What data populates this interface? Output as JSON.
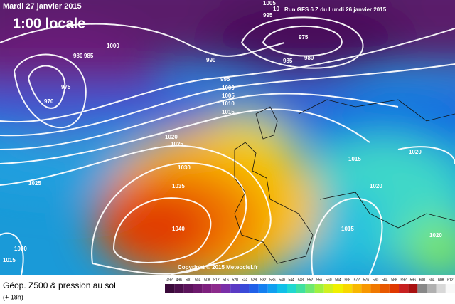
{
  "header": {
    "date": "Mardi 27 janvier 2015",
    "local_time": "1:00 locale",
    "run": "Run GFS 6 Z du Lundi 26 janvier 2015"
  },
  "copyright": "Copyright © 2015 Meteociel.fr",
  "footer": {
    "title": "Géop. Z500 & pression au sol",
    "lead": "(+ 18h)"
  },
  "isobar_labels": [
    1005,
    995,
    10,
    975,
    980,
    985,
    1000,
    985,
    980,
    975,
    970,
    990,
    995,
    1000,
    1005,
    1010,
    1015,
    1020,
    1025,
    1030,
    1035,
    1040,
    1025,
    1020,
    1015,
    1020,
    1020,
    1015,
    1020,
    1015
  ],
  "legend": {
    "levels": [
      492,
      496,
      500,
      504,
      508,
      512,
      516,
      520,
      524,
      528,
      532,
      536,
      540,
      544,
      548,
      552,
      556,
      560,
      564,
      568,
      572,
      576,
      580,
      584,
      588,
      592,
      596,
      600,
      604,
      608,
      612
    ],
    "colors": [
      "#3a0a3a",
      "#4b0f4b",
      "#5c145c",
      "#6d196d",
      "#7e1f7e",
      "#8c2a8c",
      "#7a2fa8",
      "#5a3ac4",
      "#3a4ad8",
      "#2060e8",
      "#1480f0",
      "#10a0f0",
      "#10c0e8",
      "#20d8d0",
      "#40e0a0",
      "#70e870",
      "#a0f040",
      "#d0f020",
      "#f0f000",
      "#f8d800",
      "#f8b800",
      "#f89800",
      "#f07800",
      "#e85800",
      "#e03800",
      "#c82020",
      "#a81010",
      "#888888",
      "#b0b0b0",
      "#d8d8d8",
      "#f8f8f8"
    ]
  }
}
